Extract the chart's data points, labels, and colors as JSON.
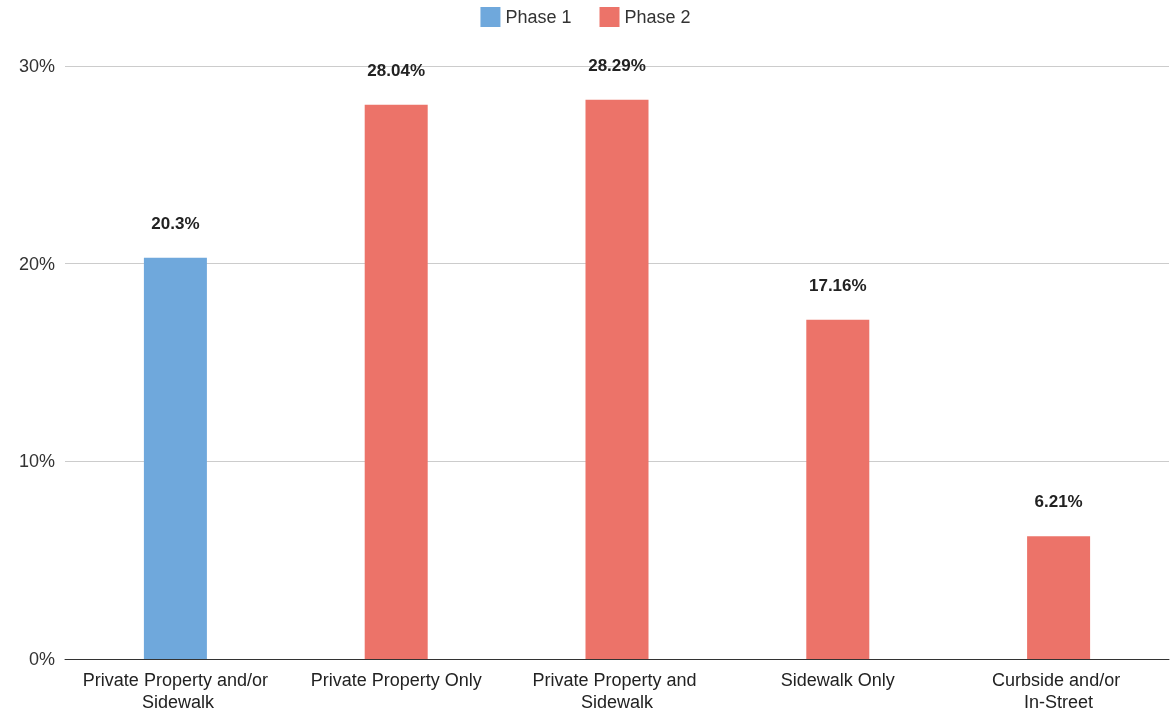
{
  "chart_data": {
    "type": "bar",
    "categories": [
      "Private Property and/or Sidewalk",
      "Private Property Only",
      "Private Property and Sidewalk",
      "Sidewalk Only",
      "Curbside and/or In-Street"
    ],
    "series": [
      {
        "name": "Phase 1",
        "color": "#6fa8dc",
        "values": [
          20.3,
          null,
          null,
          null,
          null
        ],
        "value_labels": [
          "20.3%",
          null,
          null,
          null,
          null
        ]
      },
      {
        "name": "Phase 2",
        "color": "#ec7369",
        "values": [
          null,
          28.04,
          28.29,
          17.16,
          6.21
        ],
        "value_labels": [
          null,
          "28.04%",
          "28.29%",
          "17.16%",
          "6.21%"
        ]
      }
    ],
    "ylim": [
      0,
      30
    ],
    "yticks": [
      {
        "value": 0,
        "label": "0%"
      },
      {
        "value": 10,
        "label": "10%"
      },
      {
        "value": 20,
        "label": "20%"
      },
      {
        "value": 30,
        "label": "30%"
      }
    ],
    "grid": "y",
    "legend": "top"
  }
}
